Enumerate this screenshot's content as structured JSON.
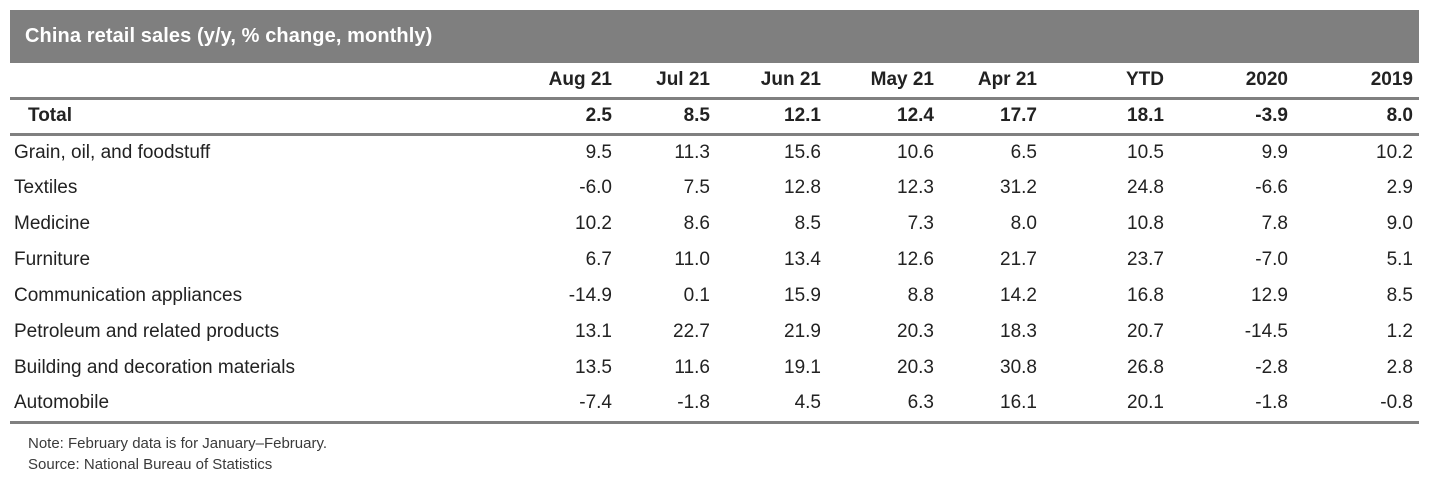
{
  "title": "China retail sales (y/y, % change, monthly)",
  "notes": {
    "note": "Note: February data is for January–February.",
    "source": "Source: National Bureau of Statistics"
  },
  "colors": {
    "title_bar_background": "#7f7f7f",
    "title_text": "#ffffff",
    "rule_gray": "#808080",
    "body_text": "#222222"
  },
  "chart_data": {
    "type": "table",
    "title": "China retail sales (y/y, % change, monthly)",
    "columns": [
      "Aug 21",
      "Jul 21",
      "Jun 21",
      "May 21",
      "Apr 21",
      "YTD",
      "2020",
      "2019"
    ],
    "total_row": {
      "label": "Total",
      "values": [
        "2.5",
        "8.5",
        "12.1",
        "12.4",
        "17.7",
        "18.1",
        "-3.9",
        "8.0"
      ]
    },
    "rows": [
      {
        "label": "Grain, oil, and foodstuff",
        "values": [
          "9.5",
          "11.3",
          "15.6",
          "10.6",
          "6.5",
          "10.5",
          "9.9",
          "10.2"
        ]
      },
      {
        "label": "Textiles",
        "values": [
          "-6.0",
          "7.5",
          "12.8",
          "12.3",
          "31.2",
          "24.8",
          "-6.6",
          "2.9"
        ]
      },
      {
        "label": "Medicine",
        "values": [
          "10.2",
          "8.6",
          "8.5",
          "7.3",
          "8.0",
          "10.8",
          "7.8",
          "9.0"
        ]
      },
      {
        "label": "Furniture",
        "values": [
          "6.7",
          "11.0",
          "13.4",
          "12.6",
          "21.7",
          "23.7",
          "-7.0",
          "5.1"
        ]
      },
      {
        "label": "Communication appliances",
        "values": [
          "-14.9",
          "0.1",
          "15.9",
          "8.8",
          "14.2",
          "16.8",
          "12.9",
          "8.5"
        ]
      },
      {
        "label": "Petroleum and related products",
        "values": [
          "13.1",
          "22.7",
          "21.9",
          "20.3",
          "18.3",
          "20.7",
          "-14.5",
          "1.2"
        ]
      },
      {
        "label": "Building and decoration materials",
        "values": [
          "13.5",
          "11.6",
          "19.1",
          "20.3",
          "30.8",
          "26.8",
          "-2.8",
          "2.8"
        ]
      },
      {
        "label": "Automobile",
        "values": [
          "-7.4",
          "-1.8",
          "4.5",
          "6.3",
          "16.1",
          "20.1",
          "-1.8",
          "-0.8"
        ]
      }
    ],
    "note": "Note: February data is for January–February.",
    "source": "Source: National Bureau of Statistics"
  }
}
